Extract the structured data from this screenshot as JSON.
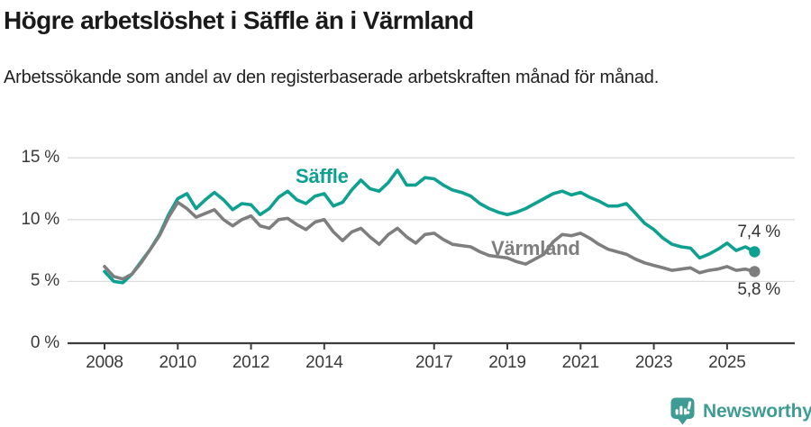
{
  "header": {
    "title": "Högre arbetslöshet i Säffle än i Värmland",
    "subtitle": "Arbetssökande som andel av den registerbaserade arbetskraften månad för månad."
  },
  "chart_data": {
    "type": "line",
    "title": "Högre arbetslöshet i Säffle än i Värmland",
    "subtitle": "Arbetssökande som andel av den registerbaserade arbetskraften månad för månad.",
    "unit": "%",
    "grid": "horizontal",
    "ylim": [
      0,
      15
    ],
    "xlim": [
      2008,
      2025.85
    ],
    "yticks": [
      {
        "value": 0,
        "label": "0 %"
      },
      {
        "value": 5,
        "label": "5 %"
      },
      {
        "value": 10,
        "label": "10 %"
      },
      {
        "value": 15,
        "label": "15 %"
      }
    ],
    "xticks": [
      {
        "year": 2008,
        "label": "2008"
      },
      {
        "year": 2010,
        "label": "2010"
      },
      {
        "year": 2012,
        "label": "2012"
      },
      {
        "year": 2014,
        "label": "2014"
      },
      {
        "year": 2017,
        "label": "2017"
      },
      {
        "year": 2019,
        "label": "2019"
      },
      {
        "year": 2021,
        "label": "2021"
      },
      {
        "year": 2023,
        "label": "2023"
      },
      {
        "year": 2025,
        "label": "2025"
      }
    ],
    "x": [
      2008,
      2008.25,
      2008.5,
      2008.75,
      2009,
      2009.25,
      2009.5,
      2009.75,
      2010,
      2010.25,
      2010.5,
      2010.75,
      2011,
      2011.25,
      2011.5,
      2011.75,
      2012,
      2012.25,
      2012.5,
      2012.75,
      2013,
      2013.25,
      2013.5,
      2013.75,
      2014,
      2014.25,
      2014.5,
      2014.75,
      2015,
      2015.25,
      2015.5,
      2015.75,
      2016,
      2016.25,
      2016.5,
      2016.75,
      2017,
      2017.25,
      2017.5,
      2017.75,
      2018,
      2018.25,
      2018.5,
      2018.75,
      2019,
      2019.25,
      2019.5,
      2019.75,
      2020,
      2020.25,
      2020.5,
      2020.75,
      2021,
      2021.25,
      2021.5,
      2021.75,
      2022,
      2022.25,
      2022.5,
      2022.75,
      2023,
      2023.25,
      2023.5,
      2023.75,
      2024,
      2024.25,
      2024.5,
      2024.75,
      2025,
      2025.25,
      2025.5,
      2025.75
    ],
    "series": [
      {
        "name": "Säffle",
        "color": "#0ea091",
        "end_label": "7,4 %",
        "end_value": 7.4,
        "values": [
          5.8,
          5.0,
          4.9,
          5.6,
          6.6,
          7.6,
          8.8,
          10.4,
          11.7,
          12.1,
          10.9,
          11.6,
          12.2,
          11.6,
          10.8,
          11.3,
          11.2,
          10.4,
          10.9,
          11.8,
          12.3,
          11.6,
          11.3,
          11.9,
          12.1,
          11.1,
          11.4,
          12.4,
          13.2,
          12.5,
          12.3,
          13.0,
          14.0,
          12.8,
          12.8,
          13.4,
          13.3,
          12.8,
          12.4,
          12.2,
          11.9,
          11.3,
          10.9,
          10.6,
          10.4,
          10.6,
          10.9,
          11.3,
          11.7,
          12.1,
          12.3,
          12.0,
          12.2,
          11.8,
          11.5,
          11.1,
          11.1,
          11.3,
          10.5,
          9.7,
          9.2,
          8.5,
          8.0,
          7.8,
          7.7,
          6.9,
          7.2,
          7.6,
          8.1,
          7.5,
          7.8,
          7.4
        ]
      },
      {
        "name": "Värmland",
        "color": "#7e7e7e",
        "end_label": "5,8 %",
        "end_value": 5.8,
        "values": [
          6.2,
          5.4,
          5.2,
          5.6,
          6.5,
          7.6,
          8.7,
          10.2,
          11.4,
          10.9,
          10.2,
          10.5,
          10.8,
          10.0,
          9.5,
          10.0,
          10.3,
          9.5,
          9.3,
          10.0,
          10.1,
          9.6,
          9.2,
          9.8,
          10.0,
          9.0,
          8.3,
          9.0,
          9.3,
          8.6,
          8.0,
          8.8,
          9.3,
          8.6,
          8.1,
          8.8,
          8.9,
          8.4,
          8.0,
          7.9,
          7.8,
          7.4,
          7.1,
          7.0,
          6.9,
          6.6,
          6.4,
          6.8,
          7.2,
          8.2,
          8.8,
          8.7,
          8.9,
          8.5,
          8.0,
          7.6,
          7.4,
          7.2,
          6.8,
          6.5,
          6.3,
          6.1,
          5.9,
          6.0,
          6.1,
          5.7,
          5.9,
          6.0,
          6.2,
          5.9,
          6.0,
          5.8
        ]
      }
    ],
    "colors": {
      "grid": "#dcdcdc",
      "axis": "#3d3d3d",
      "tick_text": "#3a3a3a"
    }
  },
  "annotations": {
    "saffle_label": "Säffle",
    "varmland_label": "Värmland",
    "saffle_end": "7,4 %",
    "varmland_end": "5,8 %"
  },
  "footer": {
    "brand": "Newsworthy",
    "brand_color": "#3f9c95",
    "logo_icon": "bar-chart-badge-icon"
  }
}
